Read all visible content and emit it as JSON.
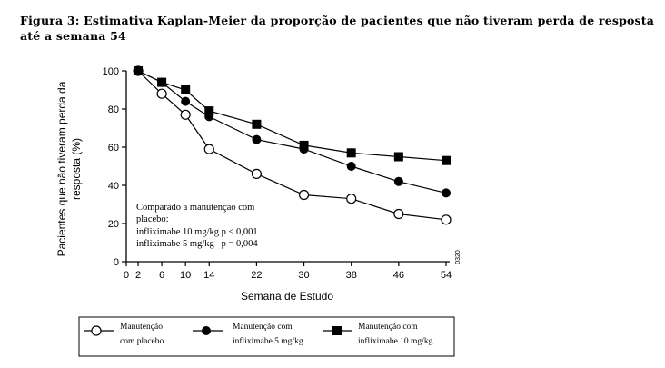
{
  "figure": {
    "caption": "Figura 3: Estimativa Kaplan-Meier da proporção de pacientes que não tiveram perda de resposta até a semana 54"
  },
  "chart_data": {
    "type": "line",
    "xlabel": "Semana de Estudo",
    "ylabel_line1": "Pacientes que não tiveram perda da",
    "ylabel_line2": "resposta (%)",
    "x_ticks": [
      "0",
      "2",
      "6",
      "10",
      "14",
      "22",
      "30",
      "38",
      "46",
      "54"
    ],
    "y_ticks": [
      "0",
      "20",
      "40",
      "60",
      "80",
      "100"
    ],
    "xlim": [
      0,
      54
    ],
    "ylim": [
      0,
      100
    ],
    "x": [
      2,
      6,
      10,
      14,
      22,
      30,
      38,
      46,
      54
    ],
    "series": [
      {
        "name_line1": "Manutenção",
        "name_line2": "com placebo",
        "marker": "open-circle",
        "values": [
          100,
          88,
          77,
          59,
          46,
          35,
          33,
          25,
          22
        ]
      },
      {
        "name_line1": "Manutenção com",
        "name_line2": "infliximabe 5 mg/kg",
        "marker": "filled-circle",
        "values": [
          100,
          94,
          84,
          76,
          64,
          59,
          50,
          42,
          36
        ]
      },
      {
        "name_line1": "Manutenção com",
        "name_line2": "infliximabe 10 mg/kg",
        "marker": "filled-square",
        "values": [
          100,
          94,
          90,
          79,
          72,
          61,
          57,
          55,
          53
        ]
      }
    ],
    "annotation": [
      "Comparado a manutenção com",
      "placebo:",
      "infliximabe 10 mg/kg p < 0,001",
      "infliximabe 5 mg/kg   p = 0,004"
    ],
    "side_code": "0320",
    "legend_position": "bottom",
    "grid": false
  }
}
